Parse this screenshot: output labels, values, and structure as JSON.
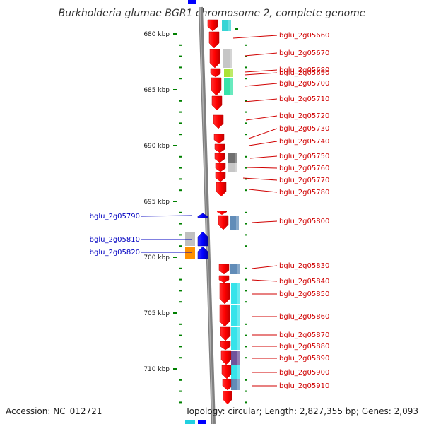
{
  "title": "Burkholderia glumae BGR1 chromosome 2, complete genome",
  "accession": "Accession: NC_012721",
  "topology": "Topology: circular; Length: 2,827,355 bp; Genes: 2,093",
  "colors": {
    "forward": "#ff0000",
    "reverse": "#0000ff",
    "backbone": "#808080",
    "tick": "#008000",
    "label_right": "#d00000",
    "label_left": "#0000c0"
  },
  "ticks": [
    {
      "label": "680 kbp",
      "kbp": 680
    },
    {
      "label": "685 kbp",
      "kbp": 685
    },
    {
      "label": "690 kbp",
      "kbp": 690
    },
    {
      "label": "695 kbp",
      "kbp": 695
    },
    {
      "label": "700 kbp",
      "kbp": 700
    },
    {
      "label": "705 kbp",
      "kbp": 705
    },
    {
      "label": "710 kbp",
      "kbp": 710
    }
  ],
  "genes_right": [
    {
      "label": "bglu_2g05660",
      "cog": "#20d0d0"
    },
    {
      "label": "bglu_2g05670",
      "cog": ""
    },
    {
      "label": "bglu_2g05680",
      "cog": "#c0c0c0"
    },
    {
      "label": "bglu_2g05690",
      "cog": "#a0e020"
    },
    {
      "label": "bglu_2g05700",
      "cog": "#20e0a0"
    },
    {
      "label": "bglu_2g05710",
      "cog": ""
    },
    {
      "label": "bglu_2g05720",
      "cog": "#5080b0"
    },
    {
      "label": "bglu_2g05730",
      "cog": ""
    },
    {
      "label": "bglu_2g05740",
      "cog": "#0000e0"
    },
    {
      "label": "bglu_2g05750",
      "cog": "#606060"
    },
    {
      "label": "bglu_2g05760",
      "cog": "#c0c0c0"
    },
    {
      "label": "bglu_2g05770",
      "cog": ""
    },
    {
      "label": "bglu_2g05780",
      "cog": ""
    },
    {
      "label": "bglu_2g05800",
      "cog": "#5080b0"
    },
    {
      "label": "bglu_2g05830",
      "cog": "#5080b0"
    },
    {
      "label": "bglu_2g05840",
      "cog": ""
    },
    {
      "label": "bglu_2g05850",
      "cog": "#20e0e8"
    },
    {
      "label": "bglu_2g05860",
      "cog": "#20e0e8"
    },
    {
      "label": "bglu_2g05870",
      "cog": "#20e0e8"
    },
    {
      "label": "bglu_2g05880",
      "cog": "#20e0e8"
    },
    {
      "label": "bglu_2g05890",
      "cog": "#604090"
    },
    {
      "label": "bglu_2g05900",
      "cog": "#20e0e8"
    },
    {
      "label": "bglu_2g05910",
      "cog": "#5080b0"
    }
  ],
  "genes_left": [
    {
      "label": "bglu_2g05790",
      "cog": ""
    },
    {
      "label": "bglu_2g05810",
      "cog": "#c0c0c0"
    },
    {
      "label": "bglu_2g05820",
      "cog": "#ff9000"
    }
  ]
}
